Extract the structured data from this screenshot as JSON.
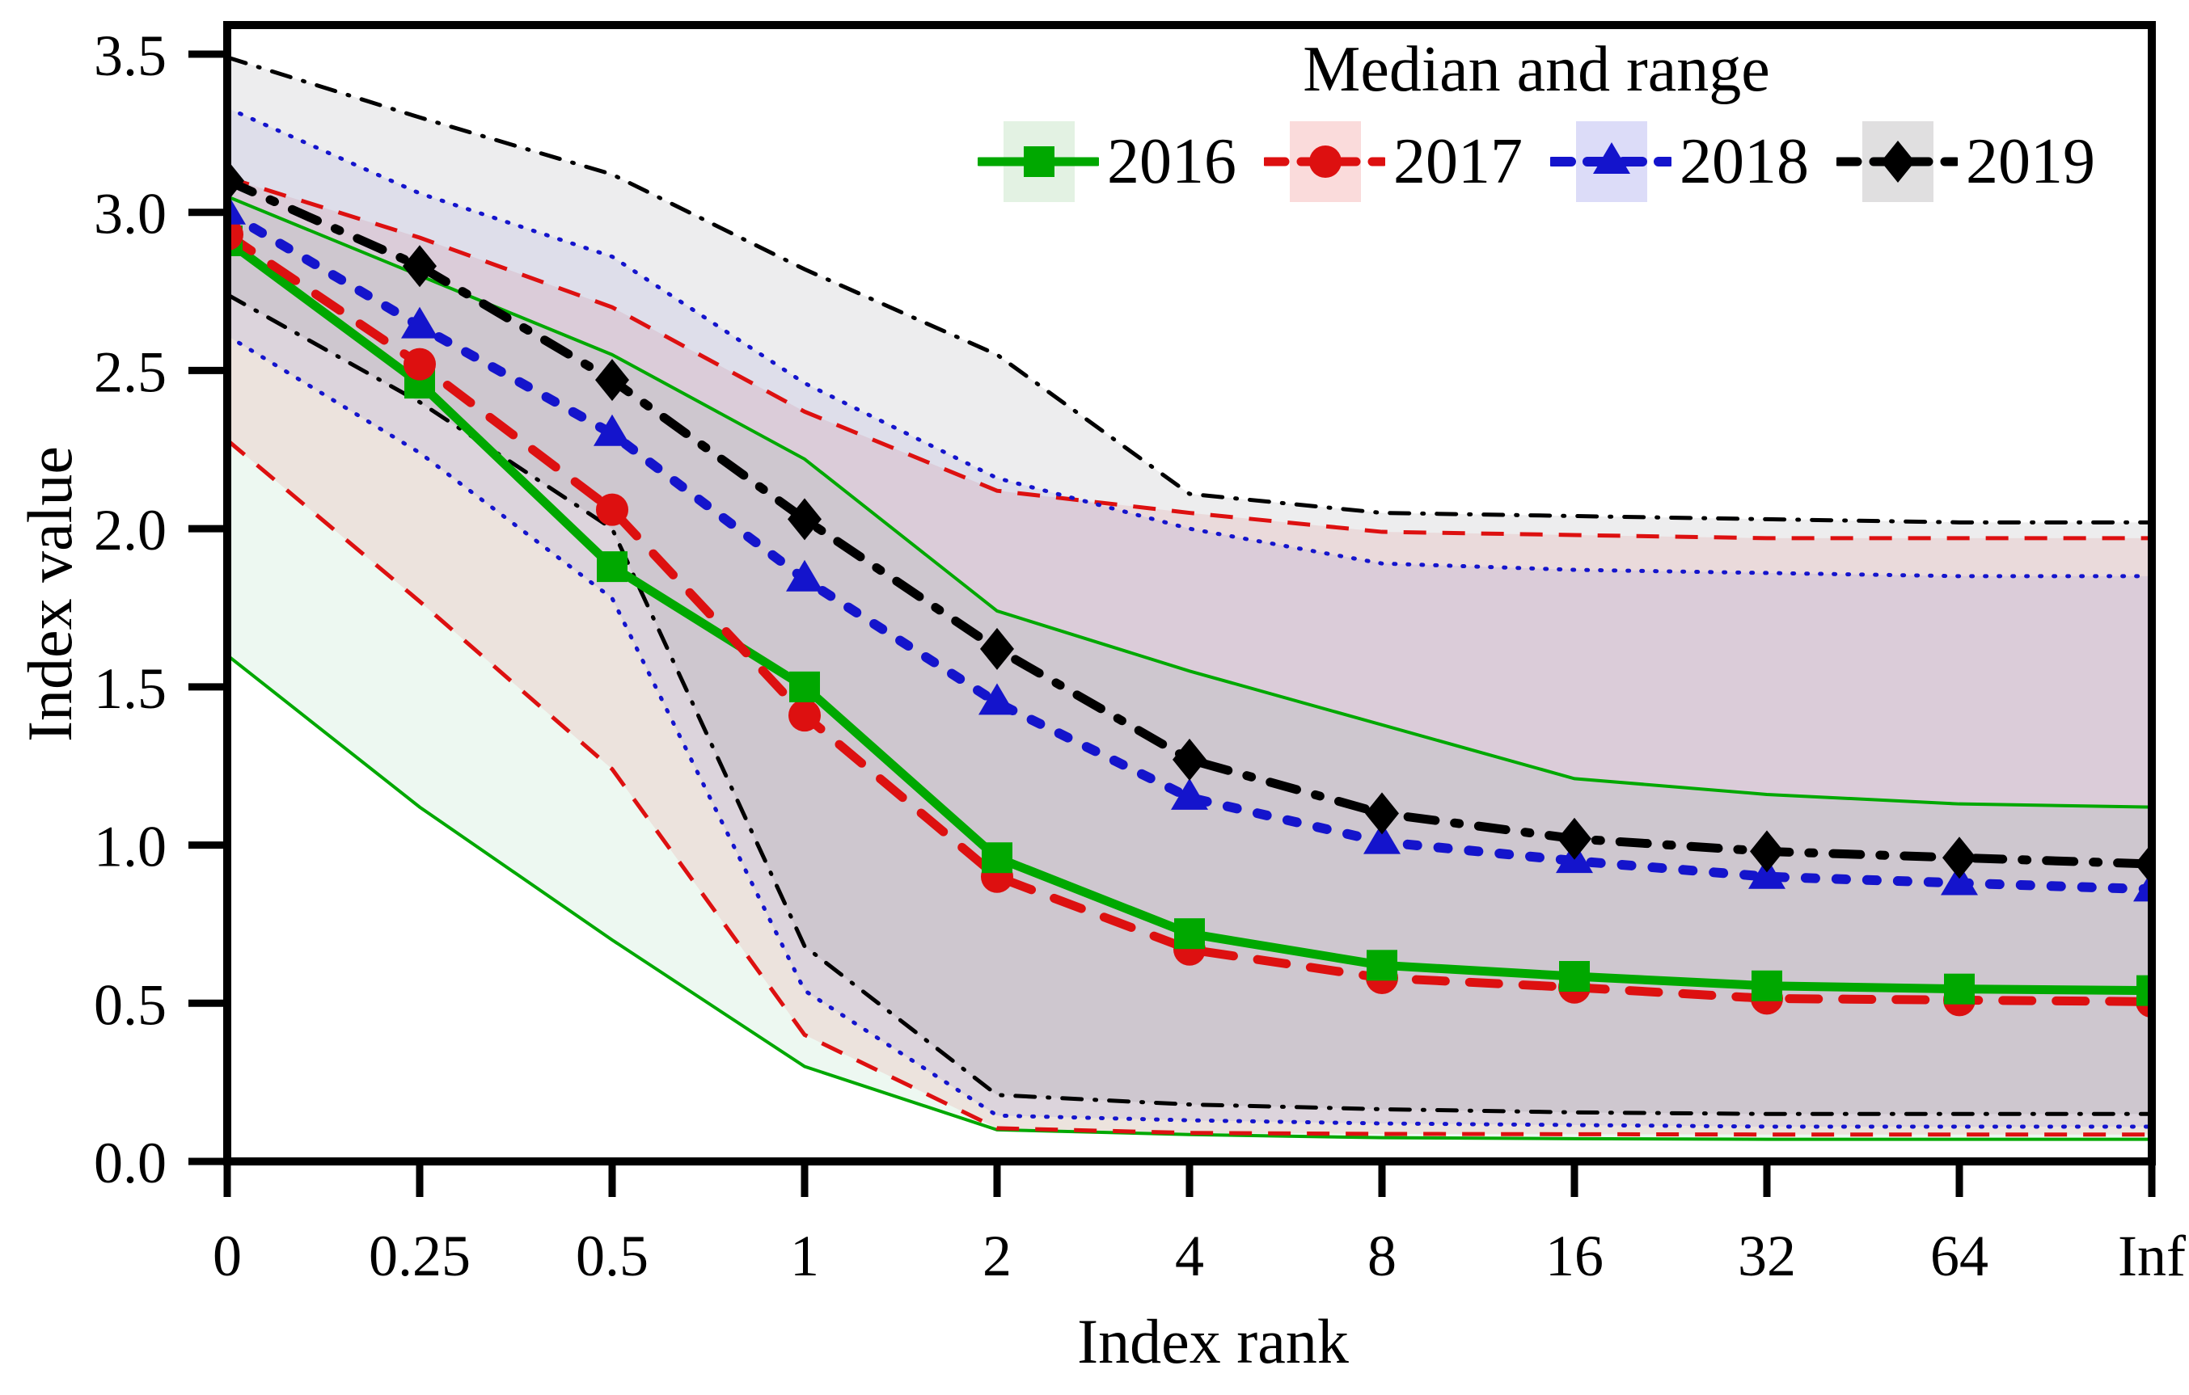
{
  "legend": {
    "title": "Median and range"
  },
  "axes": {
    "x_label": "Index rank",
    "y_label": "Index value",
    "y_tick_labels": [
      "0.0",
      "0.5",
      "1.0",
      "1.5",
      "2.0",
      "2.5",
      "3.0",
      "3.5"
    ]
  },
  "chart_data": {
    "type": "line",
    "title": "Median and range",
    "xlabel": "Index rank",
    "ylabel": "Index value",
    "x_categories": [
      "0",
      "0.25",
      "0.5",
      "1",
      "2",
      "4",
      "8",
      "16",
      "32",
      "64",
      "Inf"
    ],
    "ylim": [
      0,
      3.59
    ],
    "y_ticks": [
      0,
      0.5,
      1,
      1.5,
      2,
      2.5,
      3,
      3.5
    ],
    "grid": false,
    "legend_position": "top-center-inside",
    "frame_color": "#000000",
    "series": [
      {
        "name": "2016",
        "color": "#00a800",
        "marker": "square",
        "line_style": "solid",
        "band_color": "rgba(0,150,60,0.07)",
        "swatch_color": "#e3f2e3",
        "median": [
          2.91,
          2.46,
          1.88,
          1.5,
          0.96,
          0.72,
          0.62,
          0.585,
          0.555,
          0.545,
          0.54
        ],
        "upper": [
          3.05,
          2.8,
          2.55,
          2.22,
          1.74,
          1.55,
          1.38,
          1.21,
          1.16,
          1.13,
          1.12
        ],
        "lower": [
          1.6,
          1.12,
          0.7,
          0.3,
          0.1,
          0.085,
          0.075,
          0.072,
          0.07,
          0.07,
          0.07
        ]
      },
      {
        "name": "2017",
        "color": "#dd1010",
        "marker": "circle",
        "line_style": "dashed",
        "band_color": "rgba(225,60,60,0.11)",
        "swatch_color": "#fadbdb",
        "median": [
          2.93,
          2.52,
          2.06,
          1.41,
          0.9,
          0.67,
          0.58,
          0.55,
          0.515,
          0.51,
          0.505
        ],
        "upper": [
          3.11,
          2.92,
          2.7,
          2.37,
          2.12,
          2.05,
          1.99,
          1.98,
          1.97,
          1.97,
          1.97
        ],
        "lower": [
          2.28,
          1.77,
          1.24,
          0.4,
          0.105,
          0.09,
          0.087,
          0.086,
          0.085,
          0.085,
          0.085
        ]
      },
      {
        "name": "2018",
        "color": "#1414cc",
        "marker": "triangle",
        "line_style": "dotted",
        "band_color": "rgba(70,70,215,0.09)",
        "swatch_color": "#dcdcf8",
        "median": [
          3.0,
          2.64,
          2.3,
          1.84,
          1.45,
          1.15,
          1.01,
          0.95,
          0.9,
          0.88,
          0.86
        ],
        "upper": [
          3.33,
          3.06,
          2.86,
          2.46,
          2.16,
          2.0,
          1.89,
          1.87,
          1.86,
          1.85,
          1.85
        ],
        "lower": [
          2.61,
          2.24,
          1.78,
          0.54,
          0.145,
          0.13,
          0.12,
          0.115,
          0.11,
          0.11,
          0.11
        ]
      },
      {
        "name": "2019",
        "color": "#000000",
        "marker": "diamond",
        "line_style": "dash-dot",
        "band_color": "rgba(110,105,115,0.12)",
        "swatch_color": "#e0dfe0",
        "median": [
          3.1,
          2.83,
          2.47,
          2.03,
          1.62,
          1.27,
          1.1,
          1.02,
          0.98,
          0.96,
          0.94
        ],
        "upper": [
          3.49,
          3.3,
          3.12,
          2.82,
          2.55,
          2.11,
          2.05,
          2.04,
          2.03,
          2.02,
          2.02
        ],
        "lower": [
          2.74,
          2.4,
          2.0,
          0.68,
          0.21,
          0.18,
          0.165,
          0.155,
          0.15,
          0.15,
          0.15
        ]
      }
    ]
  }
}
